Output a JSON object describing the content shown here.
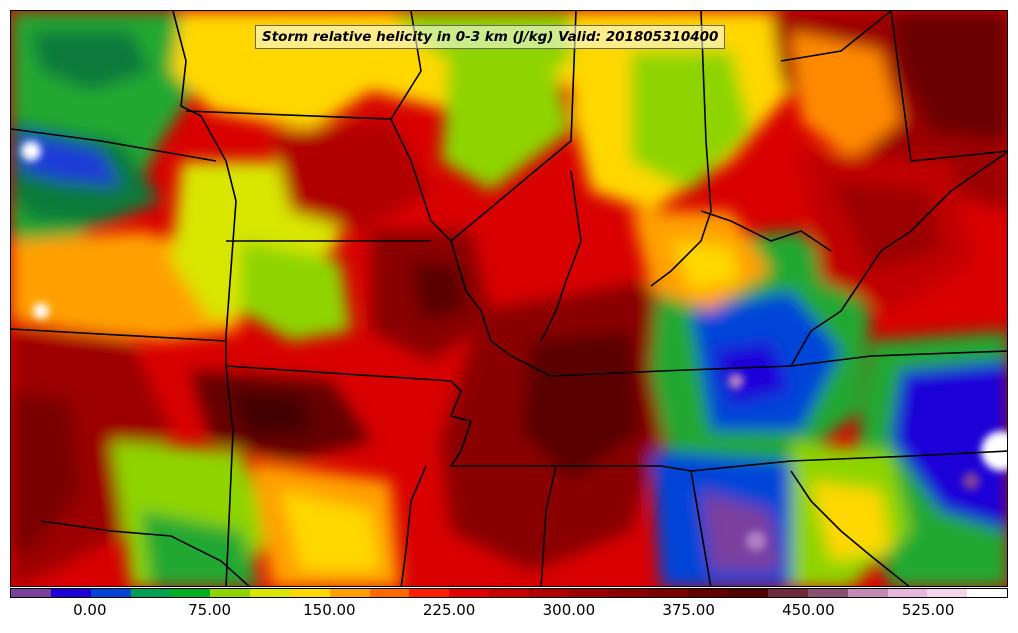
{
  "title": "Storm relative helicity in 0-3 km (J/kg) Valid: 201805310400",
  "colorbar": {
    "colors": [
      "#7b3f9e",
      "#1f00d8",
      "#0045d8",
      "#00a050",
      "#00b020",
      "#8ed400",
      "#d8e600",
      "#ffd800",
      "#ffa000",
      "#ff6a00",
      "#ff1e00",
      "#e00000",
      "#c80000",
      "#b00000",
      "#9c0000",
      "#8a0000",
      "#780000",
      "#650000",
      "#520000",
      "#6e2a3a",
      "#8a5070",
      "#c38ab5",
      "#e7b6dc",
      "#f6d6ef",
      "#ffffff"
    ],
    "ticks": [
      {
        "label": "0.00",
        "value": 0.0
      },
      {
        "label": "75.00",
        "value": 75.0
      },
      {
        "label": "150.00",
        "value": 150.0
      },
      {
        "label": "225.00",
        "value": 225.0
      },
      {
        "label": "300.00",
        "value": 300.0
      },
      {
        "label": "375.00",
        "value": 375.0
      },
      {
        "label": "450.00",
        "value": 450.0
      },
      {
        "label": "525.00",
        "value": 525.0
      }
    ],
    "range": [
      -50,
      575
    ]
  }
}
